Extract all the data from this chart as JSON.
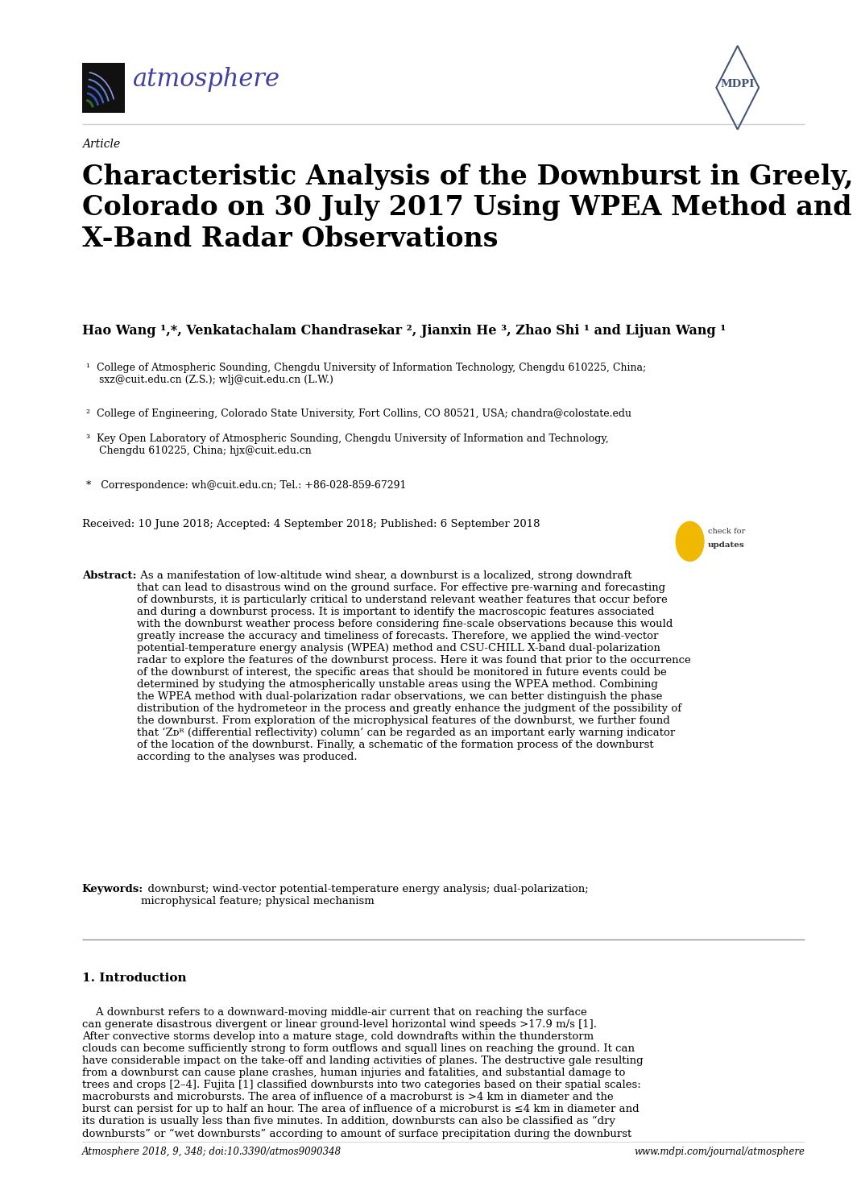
{
  "background_color": "#ffffff",
  "header": {
    "journal_name": "atmosphere",
    "journal_color": "#4040a0",
    "journal_font_size": 22
  },
  "article_label": "Article",
  "article_label_size": 10,
  "title": "Characteristic Analysis of the Downburst in Greely,\nColorado on 30 July 2017 Using WPEA Method and\nX-Band Radar Observations",
  "title_size": 24,
  "title_weight": "bold",
  "authors": "Hao Wang ¹,*, Venkatachalam Chandrasekar ², Jianxin He ³, Zhao Shi ¹ and Lijuan Wang ¹",
  "authors_size": 11.5,
  "authors_weight": "bold",
  "affiliations": [
    "¹  College of Atmospheric Sounding, Chengdu University of Information Technology, Chengdu 610225, China;\n    sxz@cuit.edu.cn (Z.S.); wlj@cuit.edu.cn (L.W.)",
    "²  College of Engineering, Colorado State University, Fort Collins, CO 80521, USA; chandra@colostate.edu",
    "³  Key Open Laboratory of Atmospheric Sounding, Chengdu University of Information and Technology,\n    Chengdu 610225, China; hjx@cuit.edu.cn",
    "*   Correspondence: wh@cuit.edu.cn; Tel.: +86-028-859-67291"
  ],
  "affiliation_size": 9,
  "received_line": "Received: 10 June 2018; Accepted: 4 September 2018; Published: 6 September 2018",
  "received_size": 9.5,
  "abstract_label": "Abstract:",
  "abstract_text": " As a manifestation of low-altitude wind shear, a downburst is a localized, strong downdraft\nthat can lead to disastrous wind on the ground surface. For effective pre-warning and forecasting\nof downbursts, it is particularly critical to understand relevant weather features that occur before\nand during a downburst process. It is important to identify the macroscopic features associated\nwith the downburst weather process before considering fine-scale observations because this would\ngreatly increase the accuracy and timeliness of forecasts. Therefore, we applied the wind-vector\npotential-temperature energy analysis (WPEA) method and CSU-CHILL X-band dual-polarization\nradar to explore the features of the downburst process. Here it was found that prior to the occurrence\nof the downburst of interest, the specific areas that should be monitored in future events could be\ndetermined by studying the atmospherically unstable areas using the WPEA method. Combining\nthe WPEA method with dual-polarization radar observations, we can better distinguish the phase\ndistribution of the hydrometeor in the process and greatly enhance the judgment of the possibility of\nthe downburst. From exploration of the microphysical features of the downburst, we further found\nthat ‘Zᴅᴿ (differential reflectivity) column’ can be regarded as an important early warning indicator\nof the location of the downburst. Finally, a schematic of the formation process of the downburst\naccording to the analyses was produced.",
  "abstract_size": 9.5,
  "keywords_label": "Keywords:",
  "keywords_text": "  downburst; wind-vector potential-temperature energy analysis; dual-polarization;\nmicrophysical feature; physical mechanism",
  "keywords_size": 9.5,
  "section_title": "1. Introduction",
  "section_title_size": 11,
  "intro_text": "    A downburst refers to a downward-moving middle-air current that on reaching the surface\ncan generate disastrous divergent or linear ground-level horizontal wind speeds >17.9 m/s [1].\nAfter convective storms develop into a mature stage, cold downdrafts within the thunderstorm\nclouds can become sufficiently strong to form outflows and squall lines on reaching the ground. It can\nhave considerable impact on the take-off and landing activities of planes. The destructive gale resulting\nfrom a downburst can cause plane crashes, human injuries and fatalities, and substantial damage to\ntrees and crops [2–4]. Fujita [1] classified downbursts into two categories based on their spatial scales:\nmacrobursts and microbursts. The area of influence of a macroburst is >4 km in diameter and the\nburst can persist for up to half an hour. The area of influence of a microburst is ≤4 km in diameter and\nits duration is usually less than five minutes. In addition, downbursts can also be classified as “dry\ndownbursts” or “wet downbursts” according to amount of surface precipitation during the downburst",
  "intro_size": 9.5,
  "footer_left": "Atmosphere 2018, 9, 348; doi:10.3390/atmos9090348",
  "footer_right": "www.mdpi.com/journal/atmosphere",
  "footer_size": 8.5
}
